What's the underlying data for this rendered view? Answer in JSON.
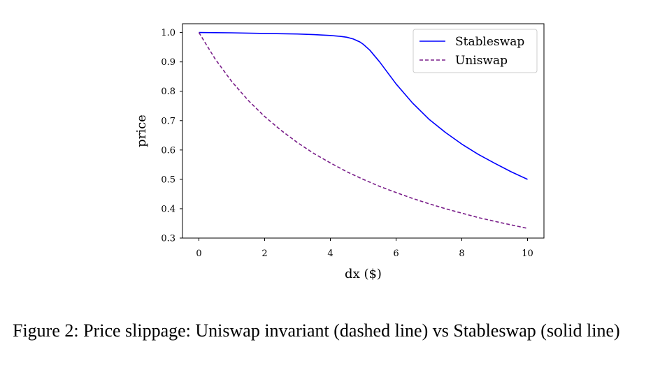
{
  "chart_data": {
    "type": "line",
    "xlabel": "dx ($)",
    "ylabel": "price",
    "xlim": [
      -0.5,
      10.5
    ],
    "ylim": [
      0.3,
      1.03
    ],
    "x_ticks": [
      0,
      2,
      4,
      6,
      8,
      10
    ],
    "x_tick_labels": [
      "0",
      "2",
      "4",
      "6",
      "8",
      "10"
    ],
    "y_ticks": [
      0.3,
      0.4,
      0.5,
      0.6,
      0.7,
      0.8,
      0.9,
      1.0
    ],
    "y_tick_labels": [
      "0.3",
      "0.4",
      "0.5",
      "0.6",
      "0.7",
      "0.8",
      "0.9",
      "1.0"
    ],
    "grid": false,
    "legend_position": "top-right",
    "series": [
      {
        "name": "Stableswap",
        "color": "#0000ff",
        "style": "solid",
        "x": [
          0,
          1,
          2,
          3,
          3.5,
          4,
          4.3,
          4.5,
          4.7,
          4.9,
          5,
          5.2,
          5.5,
          6,
          6.5,
          7,
          7.5,
          8,
          8.5,
          9,
          9.5,
          10
        ],
        "y": [
          1.0,
          0.999,
          0.997,
          0.995,
          0.993,
          0.99,
          0.987,
          0.984,
          0.978,
          0.968,
          0.96,
          0.94,
          0.9,
          0.825,
          0.76,
          0.705,
          0.66,
          0.62,
          0.585,
          0.555,
          0.526,
          0.5
        ]
      },
      {
        "name": "Uniswap",
        "color": "#7a1f8a",
        "style": "dashed",
        "x": [
          0,
          0.5,
          1,
          1.5,
          2,
          2.5,
          3,
          3.5,
          4,
          4.5,
          5,
          5.5,
          6,
          6.5,
          7,
          7.5,
          8,
          8.5,
          9,
          9.5,
          10
        ],
        "y": [
          1.0,
          0.909,
          0.833,
          0.769,
          0.714,
          0.667,
          0.625,
          0.588,
          0.556,
          0.526,
          0.5,
          0.476,
          0.455,
          0.435,
          0.417,
          0.4,
          0.385,
          0.37,
          0.357,
          0.345,
          0.333
        ]
      }
    ]
  },
  "caption": "Figure 2: Price slippage: Uniswap invariant (dashed line) vs Stableswap (solid line)"
}
